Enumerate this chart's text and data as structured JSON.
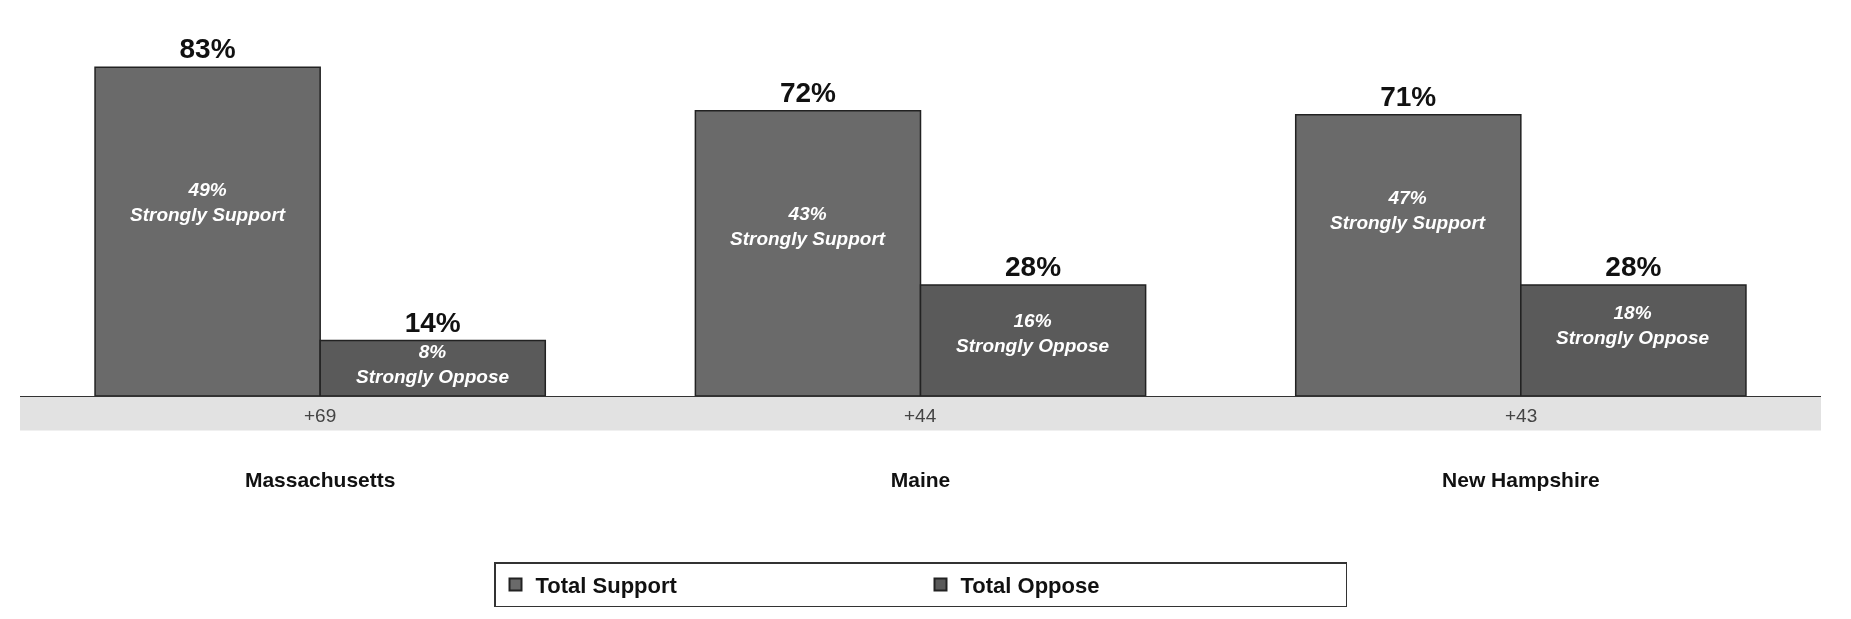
{
  "chart_data": {
    "type": "bar",
    "categories": [
      "Massachusetts",
      "Maine",
      "New Hampshire"
    ],
    "series": [
      {
        "name": "Total Support",
        "color": "#6a6a6a",
        "values": [
          83,
          72,
          71
        ],
        "value_labels": [
          "83%",
          "72%",
          "71%"
        ]
      },
      {
        "name": "Total Oppose",
        "color": "#5a5a5a",
        "values": [
          14,
          28,
          28
        ],
        "value_labels": [
          "14%",
          "28%",
          "28%"
        ]
      }
    ],
    "annotations": [
      {
        "text": "49%\nStrongly Support",
        "x": "Massachusetts",
        "y": 49
      },
      {
        "text": "8%\nStrongly Oppose",
        "x": "Massachusetts",
        "y": 8
      },
      {
        "text": "43%\nStrongly Support",
        "x": "Maine",
        "y": 43
      },
      {
        "text": "16%\nStrongly Oppose",
        "x": "Maine",
        "y": 16
      },
      {
        "text": "47%\nStrongly Support",
        "x": "New Hampshire",
        "y": 47
      },
      {
        "text": "18%\nStrongly Oppose",
        "x": "New Hampshire",
        "y": 18
      },
      "+69",
      "+44",
      "+43"
    ],
    "legend": "bottom"
  }
}
